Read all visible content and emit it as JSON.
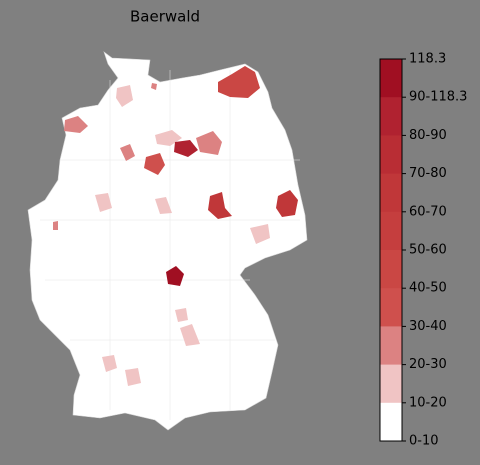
{
  "map": {
    "title": "Baerwald",
    "colorbar": {
      "labels": [
        "118.3",
        "90-118.3",
        "80-90",
        "70-80",
        "60-70",
        "50-60",
        "40-50",
        "30-40",
        "20-30",
        "10-20",
        "0-10"
      ],
      "colors": [
        "#a00f22",
        "#b02230",
        "#b92d34",
        "#c03739",
        "#c53e3e",
        "#ca4744",
        "#cf504d",
        "#dc8282",
        "#f0c4c4",
        "#ffffff"
      ]
    }
  }
}
